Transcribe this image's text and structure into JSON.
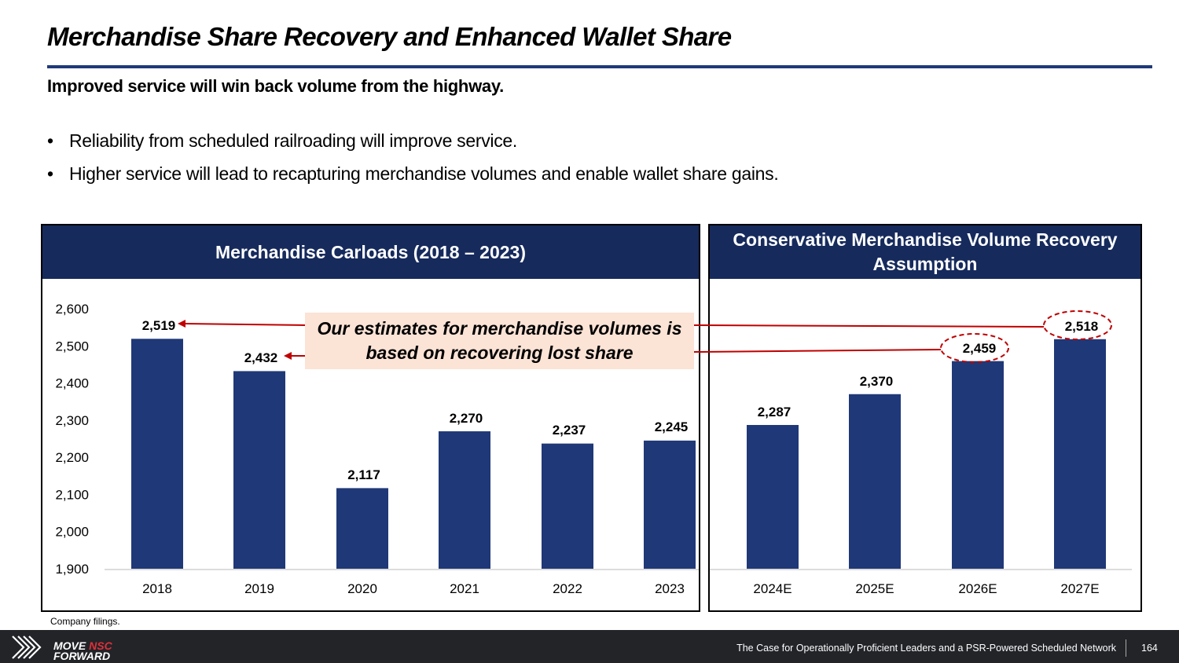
{
  "header": {
    "title": "Merchandise Share Recovery and Enhanced Wallet Share",
    "subtitle": "Improved service will win back volume from the highway.",
    "bullets": [
      "Reliability from scheduled railroading will improve service.",
      "Higher service will lead to recapturing merchandise volumes and enable wallet share gains."
    ],
    "bullet_glyph": "•"
  },
  "panels": {
    "left_title": "Merchandise Carloads (2018 – 2023)",
    "right_title": "Conservative Merchandise Volume Recovery Assumption"
  },
  "callout": {
    "text": "Our estimates for merchandise volumes is based on recovering lost share"
  },
  "source": "Company filings.",
  "footer": {
    "logo_line1_a": "MOVE ",
    "logo_line1_b": "NSC",
    "logo_line2": "FORWARD",
    "tagline": "The Case for Operationally Proficient Leaders and a PSR-Powered Scheduled Network",
    "page_number": "164"
  },
  "colors": {
    "bar": "#1f3877",
    "header_bg": "#162a5c",
    "arrow": "#c00000",
    "callout_bg": "#fbe3d6",
    "logo_red": "#e0303a"
  },
  "chart_data": [
    {
      "type": "bar",
      "title": "Merchandise Carloads (2018 – 2023)",
      "categories": [
        "2018",
        "2019",
        "2020",
        "2021",
        "2022",
        "2023"
      ],
      "values": [
        2519,
        2432,
        2117,
        2270,
        2237,
        2245
      ],
      "labels": [
        "2,519",
        "2,432",
        "2,117",
        "2,270",
        "2,237",
        "2,245"
      ],
      "xlabel": "",
      "ylabel": "",
      "ylim": [
        1900,
        2600
      ],
      "yticks": [
        1900,
        2000,
        2100,
        2200,
        2300,
        2400,
        2500,
        2600
      ],
      "ytick_labels": [
        "1,900",
        "2,000",
        "2,100",
        "2,200",
        "2,300",
        "2,400",
        "2,500",
        "2,600"
      ],
      "grid": false,
      "legend": "none"
    },
    {
      "type": "bar",
      "title": "Conservative Merchandise Volume Recovery Assumption",
      "categories": [
        "2024E",
        "2025E",
        "2026E",
        "2027E"
      ],
      "values": [
        2287,
        2370,
        2459,
        2518
      ],
      "labels": [
        "2,287",
        "2,370",
        "2,459",
        "2,518"
      ],
      "highlighted": [
        "2026E",
        "2027E"
      ],
      "xlabel": "",
      "ylabel": "",
      "ylim": [
        1900,
        2600
      ],
      "grid": false,
      "legend": "none",
      "annotations": [
        {
          "text": "Our estimates for merchandise volumes is based on recovering lost share",
          "links": [
            [
              "2018",
              "2027E"
            ],
            [
              "2019",
              "2026E"
            ]
          ]
        }
      ]
    }
  ]
}
